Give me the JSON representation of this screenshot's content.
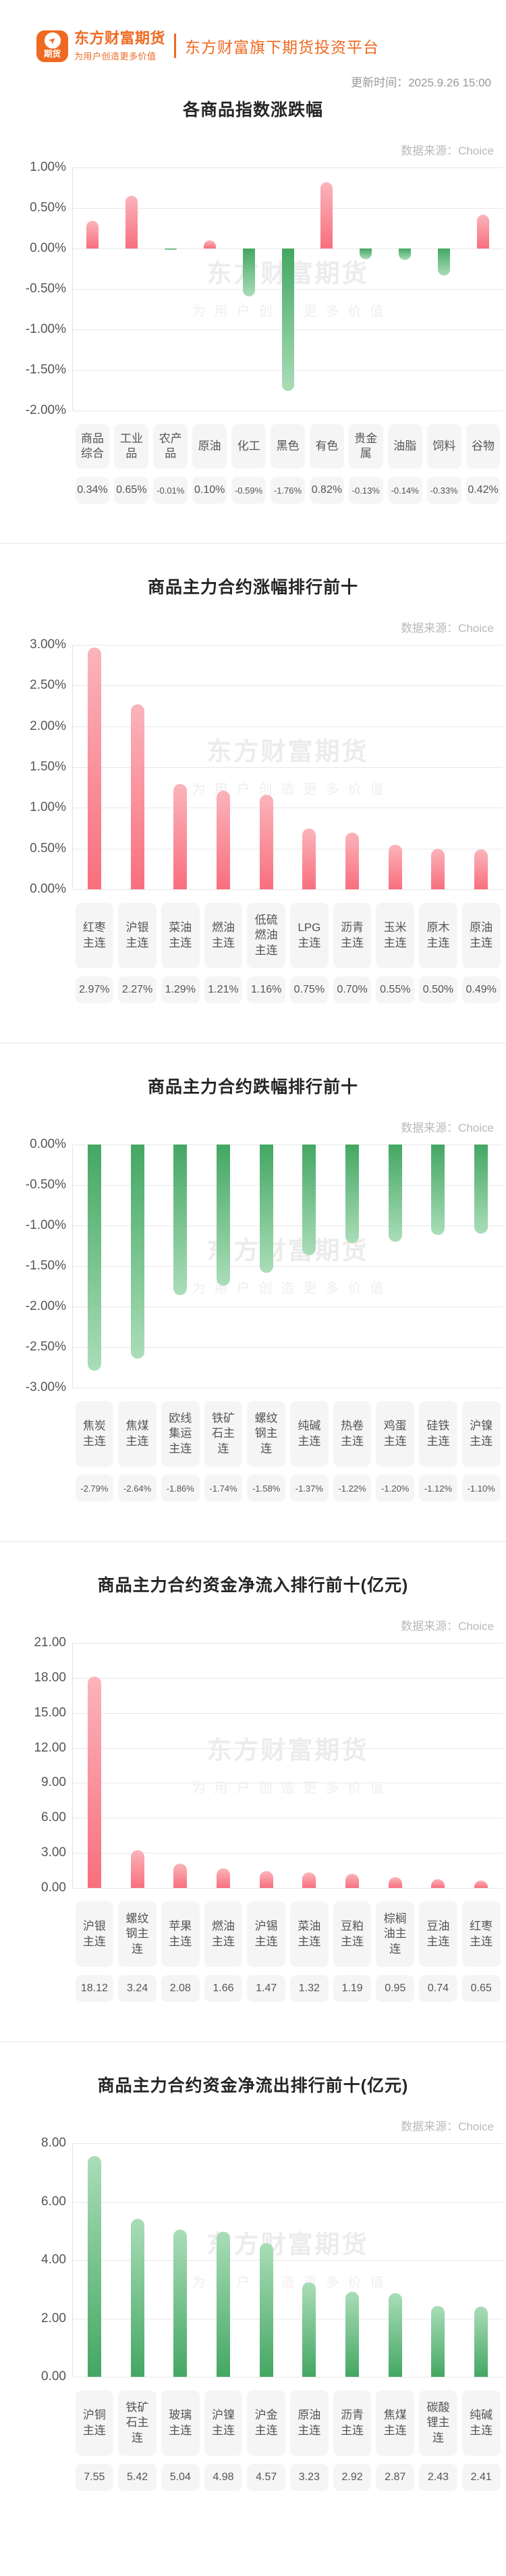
{
  "header": {
    "logo_badge": "期货",
    "brand_title": "东方财富期货",
    "brand_subtitle": "为用户创造更多价值",
    "platform_tagline": "东方财富旗下期货投资平台",
    "update_time": "更新时间：2025.9.26 15:00",
    "brand_color": "#ee6a23"
  },
  "watermark": {
    "line1": "东方财富期货",
    "line2": "为用户创造更多价值"
  },
  "source_label": "数据来源：Choice",
  "colors": {
    "up_dark": "#f86f7e",
    "up_light": "#fbb4bb",
    "down_dark": "#44a763",
    "down_light": "#aaddb8"
  },
  "chart_data": [
    {
      "type": "bar",
      "title": "各商品指数涨跌幅",
      "categories": [
        "商品综合",
        "工业品",
        "农产品",
        "原油",
        "化工",
        "黑色",
        "有色",
        "贵金属",
        "油脂",
        "饲料",
        "谷物"
      ],
      "values": [
        0.34,
        0.65,
        -0.01,
        0.1,
        -0.59,
        -1.76,
        0.82,
        -0.13,
        -0.14,
        -0.33,
        0.42
      ],
      "value_labels": [
        "0.34%",
        "0.65%",
        "-0.01%",
        "0.10%",
        "-0.59%",
        "-1.76%",
        "0.82%",
        "-0.13%",
        "-0.14%",
        "-0.33%",
        "0.42%"
      ],
      "yticks": [
        "1.00%",
        "0.50%",
        "0.00%",
        "-0.50%",
        "-1.00%",
        "-1.50%",
        "-2.00%"
      ],
      "ymax": 1.0,
      "ymin": -2.0,
      "color_mode": "sign",
      "grid": true,
      "legend": false,
      "xlabel": "",
      "ylabel": ""
    },
    {
      "type": "bar",
      "title": "商品主力合约涨幅排行前十",
      "categories": [
        "红枣主连",
        "沪银主连",
        "菜油主连",
        "燃油主连",
        "低硫燃油主连",
        "LPG主连",
        "沥青主连",
        "玉米主连",
        "原木主连",
        "原油主连"
      ],
      "values": [
        2.97,
        2.27,
        1.29,
        1.21,
        1.16,
        0.75,
        0.7,
        0.55,
        0.5,
        0.49
      ],
      "value_labels": [
        "2.97%",
        "2.27%",
        "1.29%",
        "1.21%",
        "1.16%",
        "0.75%",
        "0.70%",
        "0.55%",
        "0.50%",
        "0.49%"
      ],
      "yticks": [
        "3.00%",
        "2.50%",
        "2.00%",
        "1.50%",
        "1.00%",
        "0.50%",
        "0.00%"
      ],
      "ymax": 3.0,
      "ymin": 0,
      "color_mode": "up",
      "grid": true,
      "legend": false,
      "xlabel": "",
      "ylabel": ""
    },
    {
      "type": "bar",
      "title": "商品主力合约跌幅排行前十",
      "categories": [
        "焦炭主连",
        "焦煤主连",
        "欧线集运主连",
        "铁矿石主连",
        "螺纹钢主连",
        "纯碱主连",
        "热卷主连",
        "鸡蛋主连",
        "硅铁主连",
        "沪镍主连"
      ],
      "values": [
        -2.79,
        -2.64,
        -1.86,
        -1.74,
        -1.58,
        -1.37,
        -1.22,
        -1.2,
        -1.12,
        -1.1
      ],
      "value_labels": [
        "-2.79%",
        "-2.64%",
        "-1.86%",
        "-1.74%",
        "-1.58%",
        "-1.37%",
        "-1.22%",
        "-1.20%",
        "-1.12%",
        "-1.10%"
      ],
      "yticks": [
        "0.00%",
        "-0.50%",
        "-1.00%",
        "-1.50%",
        "-2.00%",
        "-2.50%",
        "-3.00%"
      ],
      "ymax": 0,
      "ymin": -3.0,
      "color_mode": "down",
      "grid": true,
      "legend": false,
      "xlabel": "",
      "ylabel": ""
    },
    {
      "type": "bar",
      "title": "商品主力合约资金净流入排行前十(亿元)",
      "categories": [
        "沪银主连",
        "螺纹钢主连",
        "苹果主连",
        "燃油主连",
        "沪锡主连",
        "菜油主连",
        "豆粕主连",
        "棕榈油主连",
        "豆油主连",
        "红枣主连"
      ],
      "values": [
        18.12,
        3.24,
        2.08,
        1.66,
        1.47,
        1.32,
        1.19,
        0.95,
        0.74,
        0.65
      ],
      "value_labels": [
        "18.12",
        "3.24",
        "2.08",
        "1.66",
        "1.47",
        "1.32",
        "1.19",
        "0.95",
        "0.74",
        "0.65"
      ],
      "yticks": [
        "21.00",
        "18.00",
        "15.00",
        "12.00",
        "9.00",
        "6.00",
        "3.00",
        "0.00"
      ],
      "ymax": 21,
      "ymin": 0,
      "color_mode": "up",
      "grid": true,
      "legend": false,
      "xlabel": "",
      "ylabel": ""
    },
    {
      "type": "bar",
      "title": "商品主力合约资金净流出排行前十(亿元)",
      "categories": [
        "沪铜主连",
        "铁矿石主连",
        "玻璃主连",
        "沪镍主连",
        "沪金主连",
        "原油主连",
        "沥青主连",
        "焦煤主连",
        "碳酸锂主连",
        "纯碱主连"
      ],
      "values": [
        7.55,
        5.42,
        5.04,
        4.98,
        4.57,
        3.23,
        2.92,
        2.87,
        2.43,
        2.41
      ],
      "value_labels": [
        "7.55",
        "5.42",
        "5.04",
        "4.98",
        "4.57",
        "3.23",
        "2.92",
        "2.87",
        "2.43",
        "2.41"
      ],
      "yticks": [
        "8.00",
        "6.00",
        "4.00",
        "2.00",
        "0.00"
      ],
      "ymax": 8,
      "ymin": 0,
      "color_mode": "down",
      "grid": true,
      "legend": false,
      "xlabel": "",
      "ylabel": ""
    }
  ]
}
